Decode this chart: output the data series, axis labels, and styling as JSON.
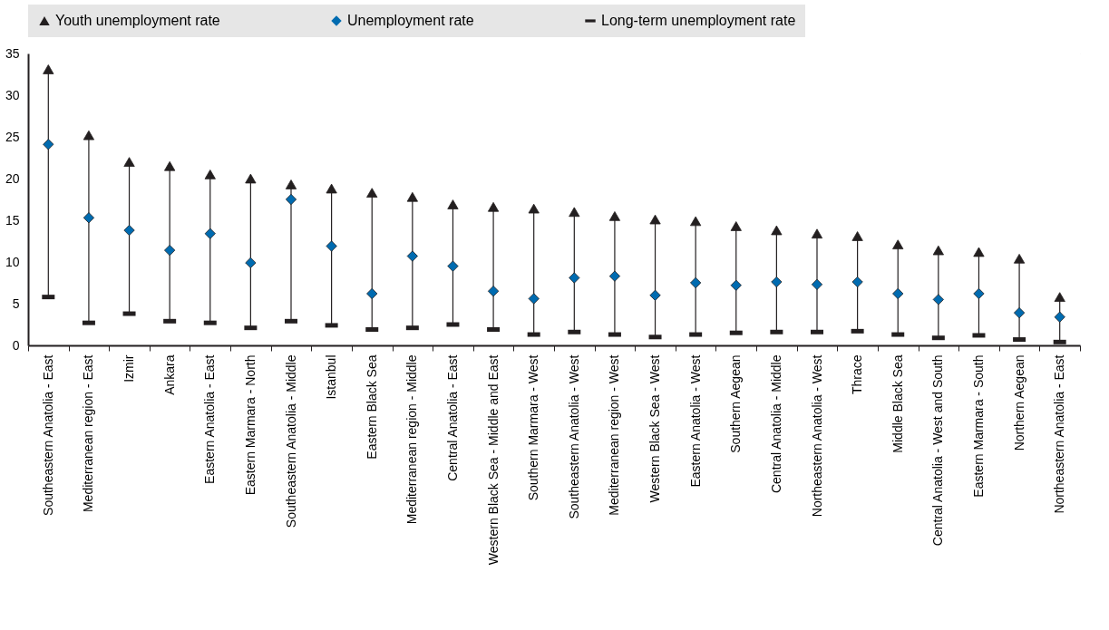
{
  "chart_data": {
    "type": "scatter",
    "categories": [
      "Southeastern Anatolia - East",
      "Mediterranean region - East",
      "Izmir",
      "Ankara",
      "Eastern Anatolia - East",
      "Eastern Marmara - North",
      "Southeastern Anatolia - Middle",
      "Istanbul",
      "Eastern Black Sea",
      "Mediterranean region - Middle",
      "Central Anatolia - East",
      "Western Black Sea - Middle and East",
      "Southern Marmara - West",
      "Southeastern Anatolia - West",
      "Mediterranean region - West",
      "Western Black Sea - West",
      "Eastern Anatolia - West",
      "Southern Aegean",
      "Central Anatolia - Middle",
      "Northeastern Anatolia - West",
      "Thrace",
      "Middle Black Sea",
      "Central Anatolia - West and South",
      "Eastern Marmara - South",
      "Northern Aegean",
      "Northeastern Anatolia - East"
    ],
    "series": [
      {
        "name": "Youth unemployment rate",
        "color": "#231f20",
        "marker": "triangle",
        "values": [
          33.1,
          25.2,
          22.0,
          21.5,
          20.5,
          20.0,
          19.3,
          18.8,
          18.3,
          17.8,
          16.9,
          16.6,
          16.4,
          16.0,
          15.5,
          15.1,
          14.9,
          14.3,
          13.8,
          13.4,
          13.1,
          12.1,
          11.4,
          11.2,
          10.4,
          5.8
        ]
      },
      {
        "name": "Unemployment rate",
        "color": "#006bb0",
        "marker": "diamond",
        "values": [
          24.1,
          15.3,
          13.8,
          11.4,
          13.4,
          9.9,
          17.5,
          11.9,
          6.2,
          10.7,
          9.5,
          6.5,
          5.6,
          8.1,
          8.3,
          6.0,
          7.5,
          7.2,
          7.6,
          7.3,
          7.6,
          6.2,
          5.5,
          6.2,
          3.9,
          3.4
        ]
      },
      {
        "name": "Long-term unemployment rate",
        "color": "#231f20",
        "values": [
          5.8,
          2.7,
          3.8,
          2.9,
          2.7,
          2.1,
          2.9,
          2.4,
          1.9,
          2.1,
          2.5,
          1.9,
          1.3,
          1.6,
          1.3,
          1.0,
          1.3,
          1.5,
          1.6,
          1.6,
          1.7,
          1.3,
          0.9,
          1.2,
          0.7,
          0.4
        ]
      }
    ],
    "ylim": [
      0,
      35
    ],
    "yticks": [
      0,
      5,
      10,
      15,
      20,
      25,
      30,
      35
    ],
    "grid": true,
    "legend": "top"
  }
}
